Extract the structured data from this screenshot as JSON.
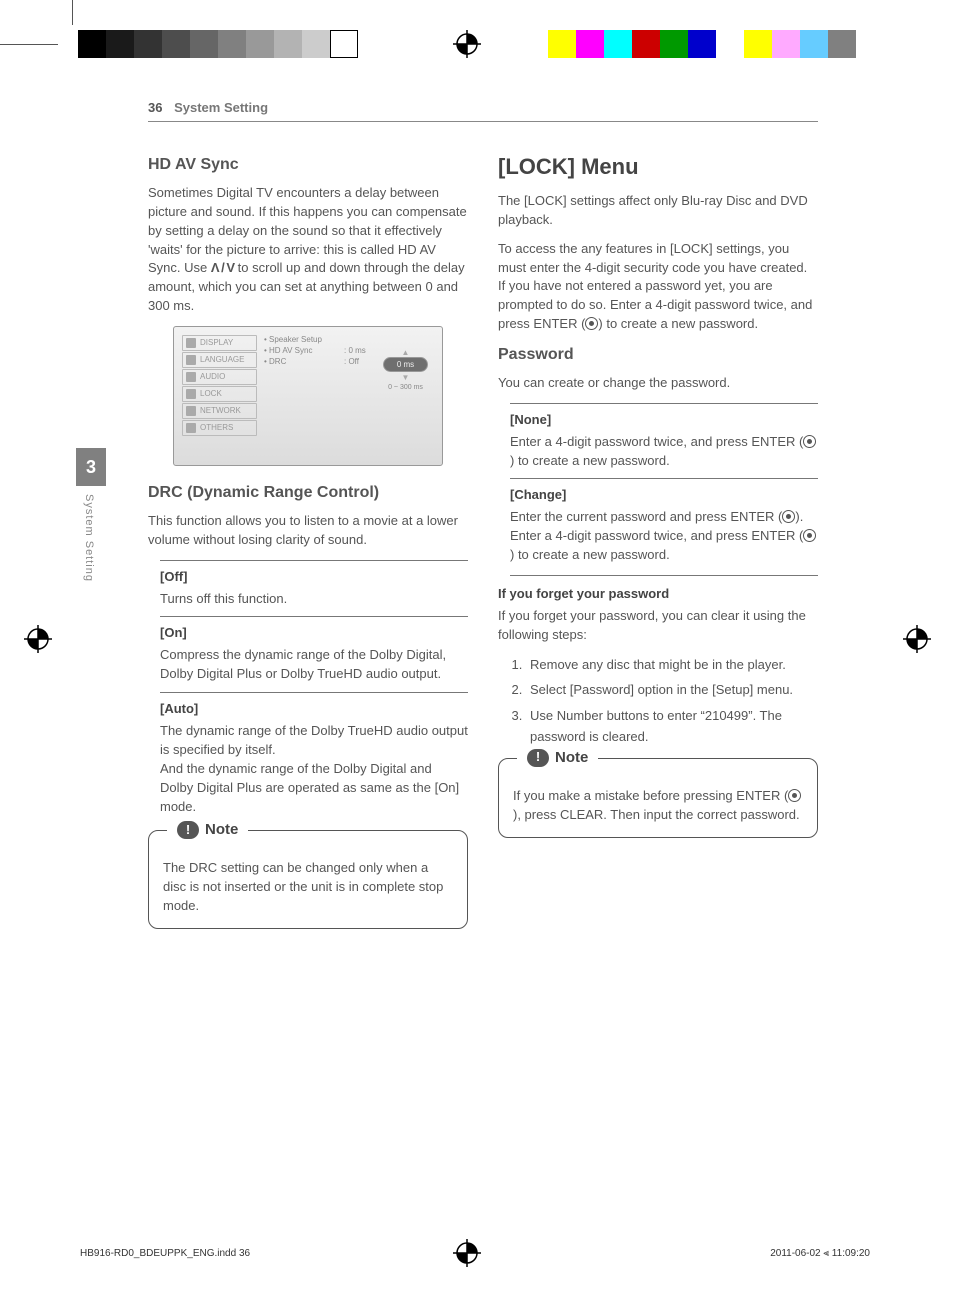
{
  "registration_bars": {
    "left_gray": {
      "widths": [
        28,
        28,
        28,
        28,
        28,
        28,
        28,
        28,
        28,
        28
      ],
      "colors": [
        "#000000",
        "#1a1a1a",
        "#333333",
        "#4d4d4d",
        "#666666",
        "#808080",
        "#999999",
        "#b3b3b3",
        "#cccccc",
        "#ffffff"
      ]
    },
    "right_color": {
      "widths": [
        28,
        28,
        28,
        28,
        28,
        28,
        28,
        28,
        28,
        28,
        28
      ],
      "colors": [
        "#ffff00",
        "#ff00ff",
        "#00ffff",
        "#cc0000",
        "#009900",
        "#0000cc",
        "#ffffff",
        "#ffff00",
        "#ffaaff",
        "#66ccff",
        "#808080"
      ]
    }
  },
  "page_header": {
    "page_number": "36",
    "section": "System Setting"
  },
  "side_tab": {
    "number": "3",
    "label": "System Setting"
  },
  "left_col": {
    "hdav": {
      "title": "HD AV Sync",
      "body_prefix": "Sometimes Digital TV encounters a delay between picture and sound. If this happens you can compensate by setting a delay on the sound so that it effectively 'waits' for the picture to arrive: this is called HD AV Sync. Use ",
      "body_updown": "Λ / V",
      "body_suffix": " to scroll up and down through the delay amount, which you can set at anything between 0 and 300 ms."
    },
    "scr": {
      "menu": [
        "DISPLAY",
        "LANGUAGE",
        "AUDIO",
        "LOCK",
        "NETWORK",
        "OTHERS"
      ],
      "items": [
        "• Speaker Setup",
        "• HD AV Sync",
        "• DRC"
      ],
      "item_vals": [
        "",
        ": 0 ms",
        ": Off"
      ],
      "oval": "0 ms",
      "range": "0 ~ 300 ms"
    },
    "drc": {
      "title": "DRC (Dynamic Range Control)",
      "body": "This function allows you to listen to a movie at a lower volume without losing clarity of sound.",
      "off": {
        "title": "[Off]",
        "text": "Turns off this function."
      },
      "on": {
        "title": "[On]",
        "text": "Compress the dynamic range of the Dolby Digital, Dolby Digital Plus or Dolby TrueHD audio output."
      },
      "auto": {
        "title": "[Auto]",
        "text": "The dynamic range of the Dolby TrueHD audio output is specified by itself.\nAnd the dynamic range of the Dolby Digital and Dolby Digital Plus are operated as same as the [On] mode."
      }
    },
    "note": {
      "label": "Note",
      "text": "The DRC setting can be changed only when a disc is not inserted or the unit is in complete stop mode."
    }
  },
  "right_col": {
    "lock": {
      "title": "[LOCK] Menu",
      "p1": "The [LOCK] settings affect only Blu-ray Disc and DVD playback.",
      "p2": "To access the any features in [LOCK] settings, you must enter the 4-digit security code you have created.",
      "p3_a": "If you have not entered a password yet, you are prompted to do so. Enter a 4-digit password twice, and press ENTER (",
      "p3_b": ") to create a new password."
    },
    "password": {
      "title": "Password",
      "intro": "You can create or change the password.",
      "none": {
        "title": "[None]",
        "t1": "Enter a 4-digit password twice, and press ENTER (",
        "t2": ") to create a new password."
      },
      "change": {
        "title": "[Change]",
        "t1": "Enter the current password and press ENTER (",
        "t2": "). Enter a 4-digit password twice, and press ENTER (",
        "t3": ") to create a new password."
      }
    },
    "forget": {
      "title": "If you forget your password",
      "intro": "If you forget your password, you can clear it using the following steps:",
      "steps": [
        "Remove any disc that might be in the player.",
        "Select [Password] option in the [Setup] menu.",
        "Use Number buttons to enter “210499”. The password is cleared."
      ]
    },
    "note": {
      "label": "Note",
      "t1": "If you make a mistake before pressing ENTER (",
      "t2": "), press CLEAR. Then input the correct password."
    }
  },
  "footer": {
    "left": "HB916-RD0_BDEUPPK_ENG.indd   36",
    "right": "2011-06-02   ⫷ 11:09:20"
  }
}
